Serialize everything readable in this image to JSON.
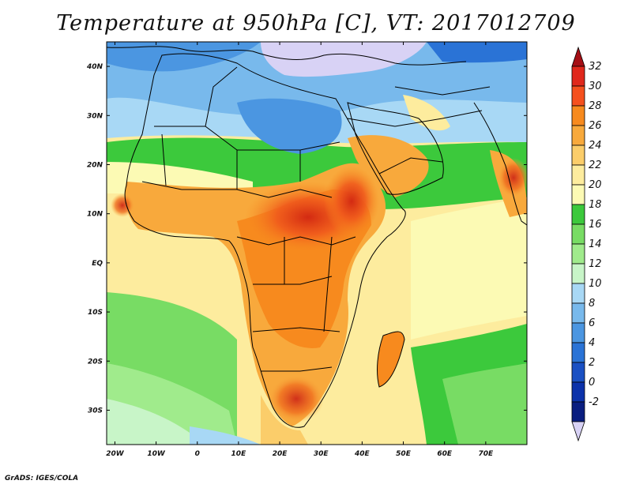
{
  "title": "Temperature at 950hPa [C], VT: 2017012709",
  "footer": "GrADS: IGES/COLA",
  "map": {
    "lon_range": [
      -22,
      80
    ],
    "lat_range": [
      -37,
      45
    ],
    "lat_ticks": [
      {
        "value": 40,
        "label": "40N"
      },
      {
        "value": 30,
        "label": "30N"
      },
      {
        "value": 20,
        "label": "20N"
      },
      {
        "value": 10,
        "label": "10N"
      },
      {
        "value": 0,
        "label": "EQ"
      },
      {
        "value": -10,
        "label": "10S"
      },
      {
        "value": -20,
        "label": "20S"
      },
      {
        "value": -30,
        "label": "30S"
      }
    ],
    "lon_ticks": [
      {
        "value": -20,
        "label": "20W"
      },
      {
        "value": -10,
        "label": "10W"
      },
      {
        "value": 0,
        "label": "0"
      },
      {
        "value": 10,
        "label": "10E"
      },
      {
        "value": 20,
        "label": "20E"
      },
      {
        "value": 30,
        "label": "30E"
      },
      {
        "value": 40,
        "label": "40E"
      },
      {
        "value": 50,
        "label": "50E"
      },
      {
        "value": 60,
        "label": "60E"
      },
      {
        "value": 70,
        "label": "70E"
      }
    ]
  },
  "colorbar": {
    "labels": [
      "32",
      "30",
      "28",
      "26",
      "24",
      "22",
      "20",
      "18",
      "16",
      "14",
      "12",
      "10",
      "8",
      "6",
      "4",
      "2",
      "0",
      "-2"
    ],
    "colors": [
      "#e0281c",
      "#f5501e",
      "#f78a1e",
      "#f8a93c",
      "#fbcd6a",
      "#fdec9e",
      "#fcfab4",
      "#3cc93c",
      "#78dc64",
      "#a0eb8c",
      "#c8f5c8",
      "#a8d8f5",
      "#78b9ec",
      "#4b96e1",
      "#2a73d6",
      "#1a50c3",
      "#0c32aa",
      "#0a1e80"
    ],
    "top_arrow_color": "#a50f15",
    "bottom_arrow_color": "#d8d2f5"
  }
}
